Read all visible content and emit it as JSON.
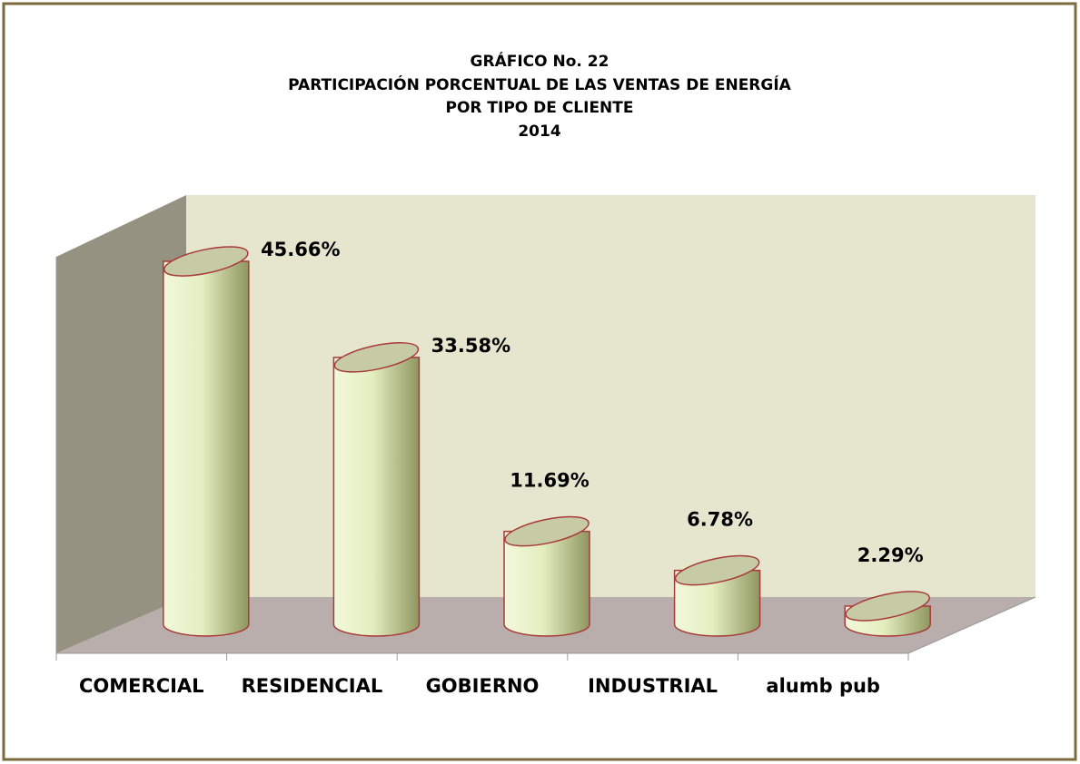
{
  "chart_data": {
    "type": "bar3d",
    "title": [
      "GRÁFICO No.  22",
      "PARTICIPACIÓN PORCENTUAL DE LAS VENTAS DE ENERGÍA",
      "POR TIPO DE CLIENTE",
      "2014"
    ],
    "categories": [
      "COMERCIAL",
      "RESIDENCIAL",
      "GOBIERNO",
      "INDUSTRIAL",
      "alumb pub"
    ],
    "values": [
      45.66,
      33.58,
      11.69,
      6.78,
      2.29
    ],
    "value_labels": [
      "45.66%",
      "33.58%",
      "11.69%",
      "6.78%",
      "2.29%"
    ],
    "color": "#e8f2c8",
    "ylim": [
      0,
      50
    ]
  }
}
